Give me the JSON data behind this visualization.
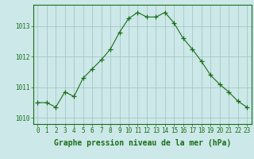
{
  "x": [
    0,
    1,
    2,
    3,
    4,
    5,
    6,
    7,
    8,
    9,
    10,
    11,
    12,
    13,
    14,
    15,
    16,
    17,
    18,
    19,
    20,
    21,
    22,
    23
  ],
  "y": [
    1010.5,
    1010.5,
    1010.35,
    1010.85,
    1010.7,
    1011.3,
    1011.6,
    1011.9,
    1012.25,
    1012.8,
    1013.25,
    1013.45,
    1013.3,
    1013.3,
    1013.45,
    1013.1,
    1012.6,
    1012.25,
    1011.85,
    1011.4,
    1011.1,
    1010.85,
    1010.55,
    1010.35
  ],
  "line_color": "#1a6e1a",
  "marker": "+",
  "marker_size": 4,
  "bg_color": "#cce8e8",
  "grid_color": "#a0c0c0",
  "ylabel_ticks": [
    1010,
    1011,
    1012,
    1013
  ],
  "xtick_labels": [
    "0",
    "1",
    "2",
    "3",
    "4",
    "5",
    "6",
    "7",
    "8",
    "9",
    "10",
    "11",
    "12",
    "13",
    "14",
    "15",
    "16",
    "17",
    "18",
    "19",
    "20",
    "21",
    "22",
    "23"
  ],
  "xlabel": "Graphe pression niveau de la mer (hPa)",
  "ylim": [
    1009.8,
    1013.7
  ],
  "xlim": [
    -0.5,
    23.5
  ],
  "tick_fontsize": 5.5,
  "label_fontsize": 7.0
}
